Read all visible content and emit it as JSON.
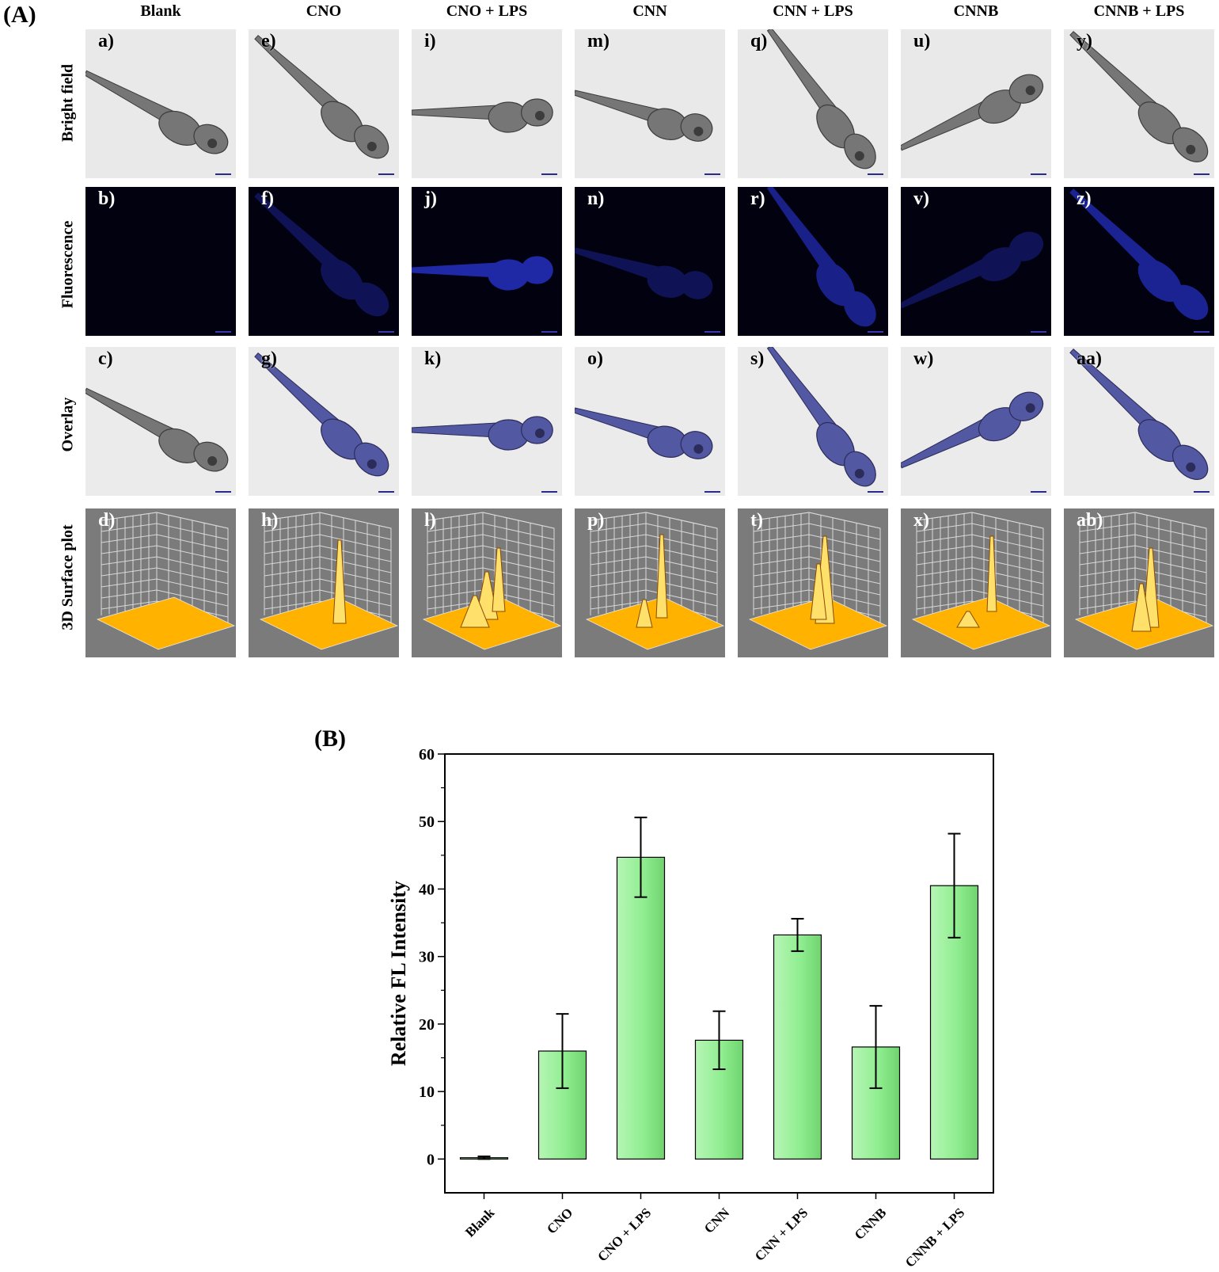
{
  "panel_a": {
    "tag": "(A)",
    "columns": [
      "Blank",
      "CNO",
      "CNO + LPS",
      "CNN",
      "CNN + LPS",
      "CNNB",
      "CNNB + LPS"
    ],
    "rows": [
      "Bright field",
      "Fluorescence",
      "Overlay",
      "3D Surface plot"
    ],
    "tile_labels": [
      [
        "a)",
        "e)",
        "i)",
        "m)",
        "q)",
        "u)",
        "y)"
      ],
      [
        "b)",
        "f)",
        "j)",
        "n)",
        "r)",
        "v)",
        "z)"
      ],
      [
        "c)",
        "g)",
        "k)",
        "o)",
        "s)",
        "w)",
        "aa)"
      ],
      [
        "d)",
        "h)",
        "l)",
        "p)",
        "t)",
        "x)",
        "ab)"
      ]
    ],
    "colors": {
      "fluorescence": "#2a35d8",
      "surface_base": "#ffb300",
      "surface_background": "#7b7b7b",
      "fluorescence_background": "#01010f"
    }
  },
  "panel_b": {
    "tag": "(B)"
  },
  "chart_data": {
    "type": "bar",
    "title": "",
    "xlabel": "",
    "ylabel": "Relative FL Intensity",
    "ylim": [
      -5,
      60
    ],
    "yticks": [
      0,
      10,
      20,
      30,
      40,
      50,
      60
    ],
    "categories": [
      "Blank",
      "CNO",
      "CNO + LPS",
      "CNN",
      "CNN + LPS",
      "CNNB",
      "CNNB + LPS"
    ],
    "values": [
      0.2,
      16.0,
      44.7,
      17.6,
      33.2,
      16.6,
      40.5
    ],
    "errors": [
      0.2,
      5.5,
      5.9,
      4.3,
      2.4,
      6.1,
      7.7
    ],
    "bar_color": "#90ee90",
    "grid": false
  }
}
